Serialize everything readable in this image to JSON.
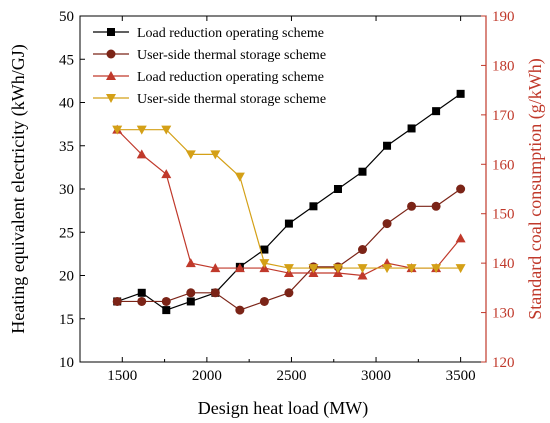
{
  "chart_data": {
    "type": "line",
    "xlabel": "Design heat load (MW)",
    "ylabel_left": "Heating equivalent electricity (kWh/GJ)",
    "ylabel_right": "Standard coal consumption (g/kWh)",
    "xlim": [
      1250,
      3650
    ],
    "ylim_left": [
      10,
      50
    ],
    "ylim_right": [
      120,
      190
    ],
    "x_ticks": [
      1500,
      2000,
      2500,
      3000,
      3500
    ],
    "y_left_ticks": [
      10,
      15,
      20,
      25,
      30,
      35,
      40,
      45,
      50
    ],
    "y_right_ticks": [
      120,
      130,
      140,
      150,
      160,
      170,
      180,
      190
    ],
    "colors": {
      "left_axis": "#000000",
      "right_axis": "#c0392b"
    },
    "x": [
      1470,
      1615,
      1760,
      1905,
      2050,
      2195,
      2340,
      2485,
      2630,
      2775,
      2920,
      3065,
      3210,
      3355,
      3500
    ],
    "series": [
      {
        "name": "Load reduction operating scheme",
        "axis": "left",
        "color": "#000000",
        "marker": "square",
        "values": [
          17,
          18,
          16,
          17,
          18,
          21,
          23,
          26,
          28,
          30,
          32,
          35,
          37,
          39,
          41
        ]
      },
      {
        "name": "User-side thermal storage scheme",
        "axis": "left",
        "color": "#7b2417",
        "marker": "circle",
        "values": [
          17,
          17,
          17,
          18,
          18,
          16,
          17,
          18,
          21,
          21,
          23,
          26,
          28,
          28,
          30
        ]
      },
      {
        "name": "Load reduction operating scheme",
        "axis": "right",
        "color": "#c0392b",
        "marker": "triangle-up",
        "values": [
          167,
          162,
          158,
          140,
          139,
          139,
          139,
          138,
          138,
          138,
          137.5,
          140,
          139,
          139,
          145
        ]
      },
      {
        "name": "User-side thermal storage scheme",
        "axis": "right",
        "color": "#d4a017",
        "marker": "triangle-down",
        "values": [
          167,
          167,
          167,
          162,
          162,
          157.5,
          140,
          139,
          139,
          139,
          139,
          139,
          139,
          139,
          139
        ]
      }
    ]
  }
}
